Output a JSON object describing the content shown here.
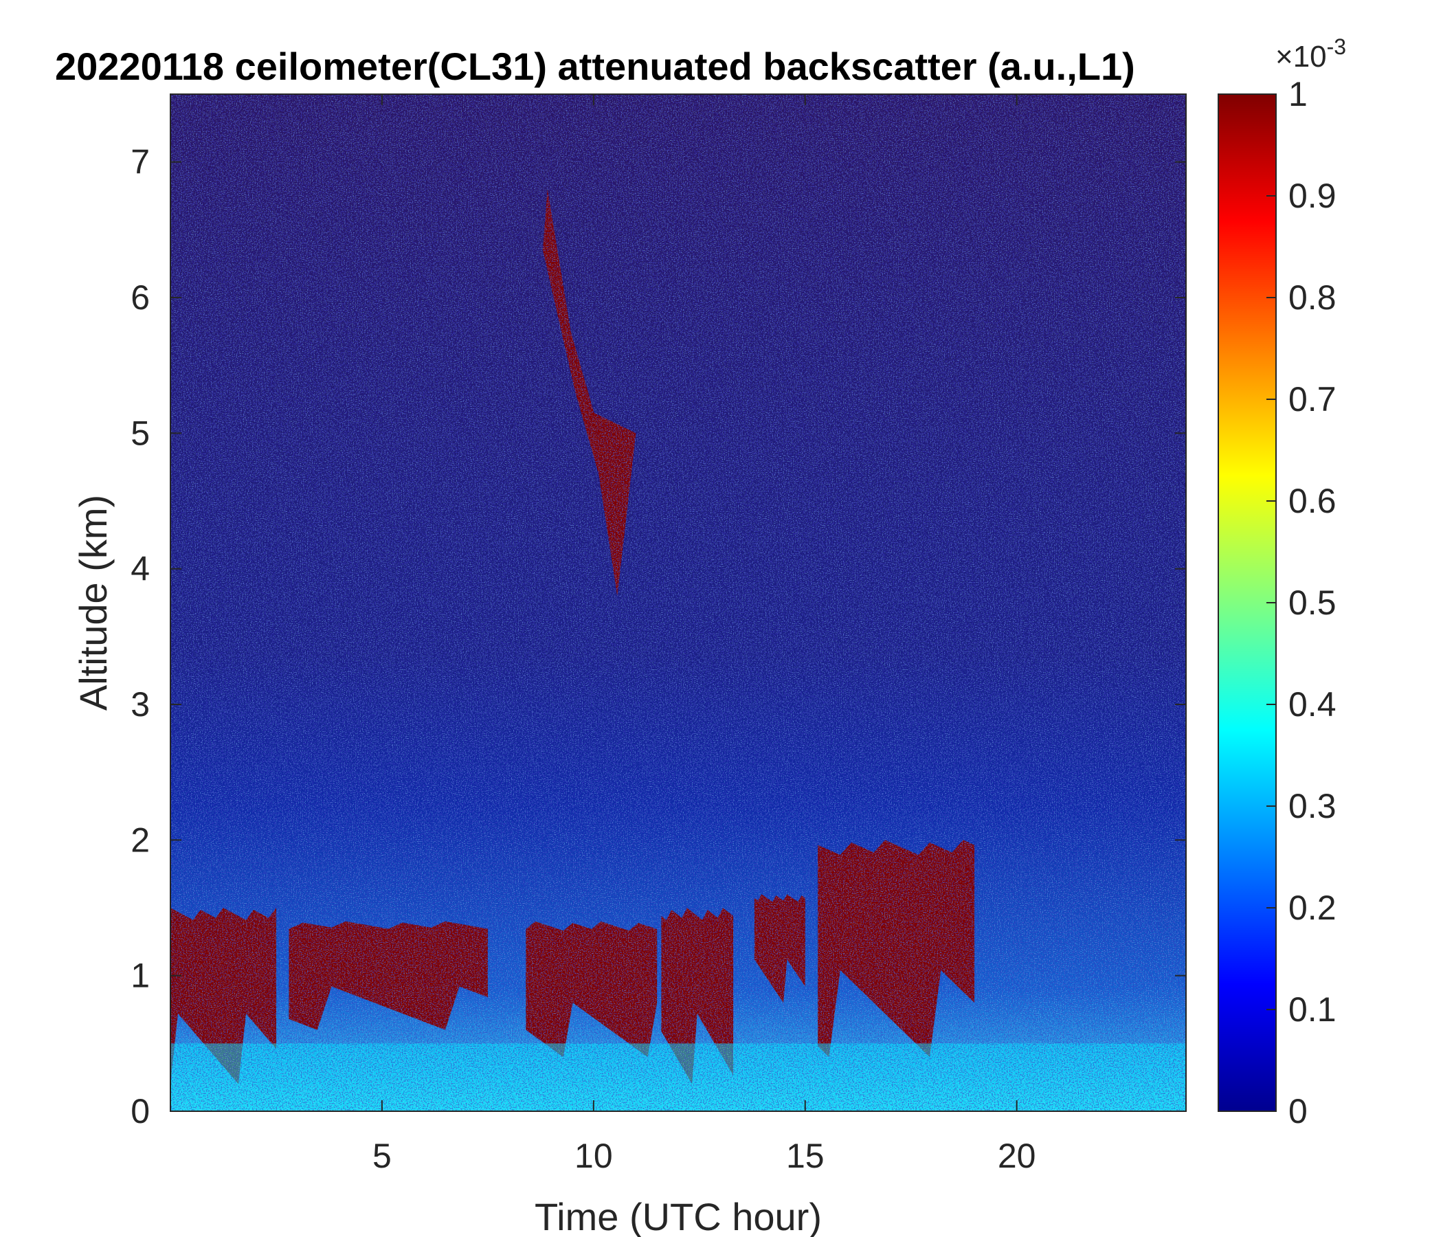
{
  "chart_data": {
    "type": "heatmap",
    "title": "20220118 ceilometer(CL31) attenuated backscatter (a.u.,L1)",
    "xlabel": "Time (UTC hour)",
    "ylabel": "Altitude (km)",
    "xlim": [
      0,
      24
    ],
    "ylim": [
      0,
      7.5
    ],
    "xticks": [
      5,
      10,
      15,
      20
    ],
    "yticks": [
      0,
      1,
      2,
      3,
      4,
      5,
      6,
      7
    ],
    "colorbar": {
      "colormap": "jet",
      "range": [
        0,
        1
      ],
      "exponent_label": "×10",
      "exponent_power": "-3",
      "ticks": [
        0,
        0.1,
        0.2,
        0.3,
        0.4,
        0.5,
        0.6,
        0.7,
        0.8,
        0.9,
        1
      ]
    },
    "features": [
      {
        "type": "boundary_layer_cloud",
        "x_range": [
          0,
          2.5
        ],
        "alt_range": [
          0.2,
          1.5
        ],
        "value": 1
      },
      {
        "type": "boundary_layer_cloud",
        "x_range": [
          2.8,
          7.5
        ],
        "alt_range": [
          0.6,
          1.4
        ],
        "value": 1
      },
      {
        "type": "boundary_layer_cloud",
        "x_range": [
          8.4,
          11.5
        ],
        "alt_range": [
          0.4,
          1.4
        ],
        "value": 1
      },
      {
        "type": "boundary_layer_cloud",
        "x_range": [
          11.6,
          13.3
        ],
        "alt_range": [
          0.2,
          1.5
        ],
        "value": 1
      },
      {
        "type": "boundary_layer_cloud",
        "x_range": [
          13.8,
          15.0
        ],
        "alt_range": [
          0.8,
          1.6
        ],
        "value": 1
      },
      {
        "type": "boundary_layer_cloud",
        "x_range": [
          15.3,
          19.0
        ],
        "alt_range": [
          0.4,
          2.0
        ],
        "value": 1
      },
      {
        "type": "virga_streak",
        "x_range": [
          8.8,
          11.0
        ],
        "alt_range": [
          3.8,
          6.8
        ],
        "value": 1
      },
      {
        "type": "aerosol_layer",
        "x_range": [
          0,
          24
        ],
        "alt_range": [
          0,
          0.5
        ],
        "value": 0.35
      }
    ],
    "grid": false
  }
}
